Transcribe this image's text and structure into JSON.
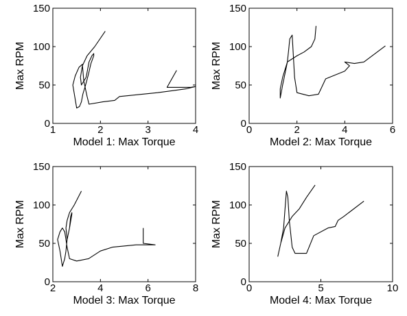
{
  "chart_data": [
    {
      "type": "line",
      "xlabel": "Model 1: Max Torque",
      "ylabel": "Max RPM",
      "xlim": [
        1,
        4
      ],
      "ylim": [
        0,
        150
      ],
      "xticks": [
        "1",
        "2",
        "3",
        "4"
      ],
      "yticks": [
        "0",
        "50",
        "100",
        "150"
      ],
      "grid": false,
      "series": [
        {
          "x": [
            2.1,
            1.88,
            1.72,
            1.62,
            1.58,
            1.6,
            1.7,
            1.76,
            1.82,
            1.86,
            1.86,
            1.8,
            1.74,
            1.68,
            1.63,
            1.6,
            1.56,
            1.5,
            1.42,
            1.47,
            1.55,
            1.62,
            1.65,
            1.72,
            1.76,
            2.05,
            2.3,
            2.4,
            3.2,
            3.8,
            4.0,
            3.9,
            3.6,
            3.4,
            3.4,
            3.6
          ],
          "y": [
            120,
            100,
            88,
            75,
            60,
            50,
            60,
            80,
            88,
            91,
            88,
            78,
            62,
            48,
            38,
            28,
            22,
            20,
            50,
            62,
            73,
            77,
            55,
            35,
            25,
            28,
            30,
            35,
            40,
            45,
            48,
            47,
            47,
            47,
            47,
            69
          ]
        }
      ]
    },
    {
      "type": "line",
      "xlabel": "Model 2: Max Torque",
      "ylabel": "Max RPM",
      "xlim": [
        0,
        6
      ],
      "ylim": [
        0,
        150
      ],
      "xticks": [
        "0",
        "2",
        "4",
        "6"
      ],
      "yticks": [
        "0",
        "50",
        "100",
        "150"
      ],
      "grid": false,
      "series": [
        {
          "x": [
            2.8,
            2.75,
            2.6,
            2.3,
            2.0,
            1.6,
            1.4,
            1.3,
            1.3,
            1.4,
            1.5,
            1.6,
            1.65,
            1.7,
            1.8,
            1.9,
            2.0,
            2.5,
            2.9,
            3.2,
            4.0,
            4.2,
            4.0,
            4.4,
            4.8,
            5.7
          ],
          "y": [
            127,
            110,
            100,
            93,
            88,
            80,
            60,
            45,
            33,
            50,
            65,
            80,
            95,
            110,
            115,
            60,
            40,
            36,
            38,
            58,
            68,
            75,
            80,
            78,
            80,
            101
          ]
        }
      ]
    },
    {
      "type": "line",
      "xlabel": "Model 3: Max Torque",
      "ylabel": "Max RPM",
      "xlim": [
        2,
        8
      ],
      "ylim": [
        0,
        150
      ],
      "xticks": [
        "2",
        "4",
        "6",
        "8"
      ],
      "yticks": [
        "0",
        "50",
        "100",
        "150"
      ],
      "grid": false,
      "series": [
        {
          "x": [
            3.2,
            2.9,
            2.7,
            2.6,
            2.55,
            2.6,
            2.7,
            2.75,
            2.8,
            2.8,
            2.7,
            2.6,
            2.55,
            2.5,
            2.4,
            2.3,
            2.2,
            2.3,
            2.4,
            2.5,
            2.6,
            2.7,
            3.0,
            3.5,
            4.0,
            4.5,
            5.5,
            6.3,
            5.8,
            5.8
          ],
          "y": [
            118,
            100,
            90,
            80,
            70,
            55,
            70,
            85,
            90,
            88,
            70,
            55,
            40,
            30,
            20,
            40,
            55,
            65,
            70,
            65,
            45,
            30,
            27,
            30,
            40,
            45,
            48,
            48,
            50,
            70
          ]
        }
      ]
    },
    {
      "type": "line",
      "xlabel": "Model 4: Max Torque",
      "ylabel": "Max RPM",
      "xlim": [
        0,
        10
      ],
      "ylim": [
        0,
        150
      ],
      "xticks": [
        "0",
        "5",
        "10"
      ],
      "yticks": [
        "0",
        "50",
        "100",
        "150"
      ],
      "grid": false,
      "series": [
        {
          "x": [
            4.6,
            4.0,
            3.5,
            3.0,
            2.5,
            2.2,
            2.0,
            2.2,
            2.4,
            2.5,
            2.6,
            2.7,
            2.8,
            3.0,
            3.2,
            4.0,
            4.5,
            5.5,
            6.0,
            6.2,
            6.6,
            8.0
          ],
          "y": [
            126,
            110,
            95,
            85,
            70,
            50,
            33,
            50,
            70,
            95,
            118,
            110,
            80,
            45,
            37,
            37,
            60,
            70,
            72,
            80,
            85,
            105
          ]
        }
      ]
    }
  ]
}
